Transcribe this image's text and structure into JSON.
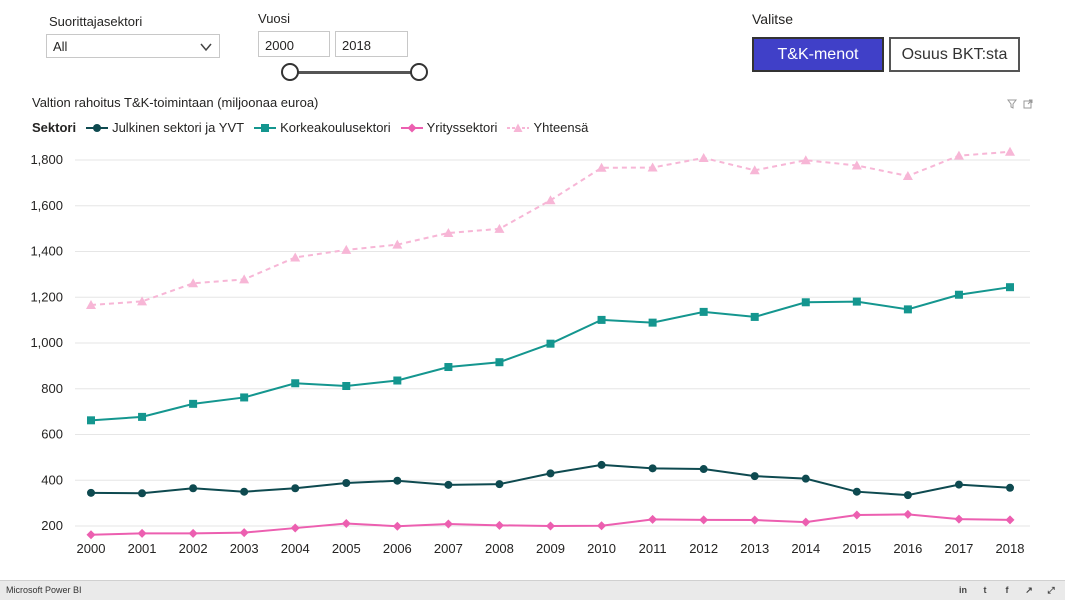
{
  "filters": {
    "sector_label": "Suorittajasektori",
    "sector_value": "All",
    "year_label": "Vuosi",
    "year_from": "2000",
    "year_to": "2018",
    "choose_label": "Valitse",
    "btn_rd": "T&K-menot",
    "btn_gdp": "Osuus BKT:sta"
  },
  "chart": {
    "title": "Valtion rahoitus T&K-toimintaan (miljoonaa euroa)",
    "legend_title": "Sektori"
  },
  "chart_data": {
    "type": "line",
    "title": "Valtion rahoitus T&K-toimintaan (miljoonaa euroa)",
    "xlabel": "",
    "ylabel": "",
    "ylim": [
      150,
      1850
    ],
    "yticks": [
      200,
      400,
      600,
      800,
      1000,
      1200,
      1400,
      1600,
      1800
    ],
    "ytick_labels": [
      "200",
      "400",
      "600",
      "800",
      "1,000",
      "1,200",
      "1,400",
      "1,600",
      "1,800"
    ],
    "categories": [
      "2000",
      "2001",
      "2002",
      "2003",
      "2004",
      "2005",
      "2006",
      "2007",
      "2008",
      "2009",
      "2010",
      "2011",
      "2012",
      "2013",
      "2014",
      "2015",
      "2016",
      "2017",
      "2018"
    ],
    "grid": true,
    "legend_position": "top-left",
    "series": [
      {
        "name": "Julkinen sektori ja YVT",
        "color": "#0e4a50",
        "marker": "circle",
        "dashed": false,
        "values": [
          345,
          343,
          365,
          350,
          365,
          388,
          398,
          380,
          383,
          430,
          467,
          452,
          449,
          418,
          407,
          350,
          335,
          381,
          367
        ]
      },
      {
        "name": "Korkeakoulusektori",
        "color": "#14968f",
        "marker": "square",
        "dashed": false,
        "values": [
          662,
          677,
          734,
          762,
          824,
          812,
          836,
          895,
          916,
          997,
          1101,
          1089,
          1136,
          1114,
          1178,
          1181,
          1147,
          1211,
          1244
        ]
      },
      {
        "name": "Yrityssektori",
        "color": "#ec5fb0",
        "marker": "diamond",
        "dashed": false,
        "values": [
          162,
          168,
          168,
          171,
          191,
          211,
          199,
          209,
          203,
          200,
          201,
          229,
          227,
          226,
          217,
          248,
          251,
          230,
          227
        ]
      },
      {
        "name": "Yhteensä",
        "color": "#f7b6d6",
        "marker": "triangle",
        "dashed": true,
        "values": [
          1166,
          1182,
          1261,
          1278,
          1374,
          1407,
          1430,
          1481,
          1499,
          1624,
          1766,
          1767,
          1809,
          1755,
          1799,
          1776,
          1730,
          1819,
          1836
        ]
      }
    ]
  },
  "footer": {
    "brand": "Microsoft Power BI"
  },
  "icons": [
    "chevron-down-icon",
    "filter-icon",
    "focus-mode-icon",
    "linkedin-icon",
    "twitter-icon",
    "facebook-icon",
    "share-icon",
    "fullscreen-icon"
  ]
}
